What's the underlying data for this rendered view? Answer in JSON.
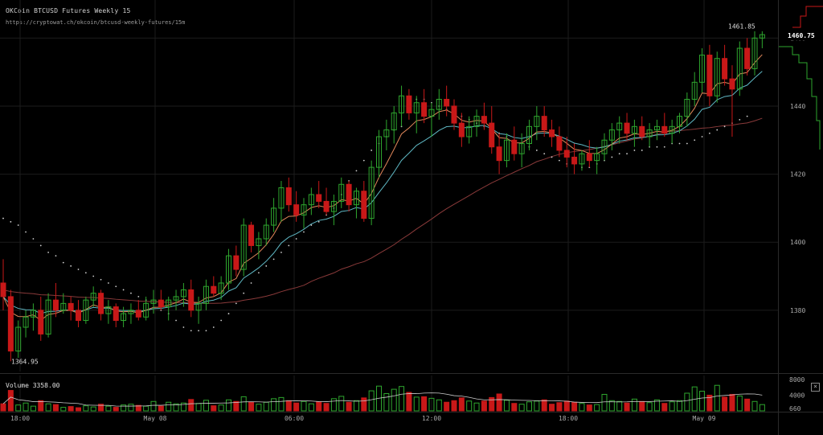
{
  "header": {
    "title": "OKCoin BTCUSD Futures Weekly 15",
    "url": "https://cryptowat.ch/okcoin/btcusd-weekly-futures/15m"
  },
  "colors": {
    "up": "#2ea62e",
    "down": "#c81818",
    "grid": "#1c1c1c",
    "ema_fast": "#e0875a",
    "ema_slow": "#5fb8c4",
    "sma_long": "#8a3a3a",
    "psar": "#cfcfcf",
    "volume_ma": "#cccccc"
  },
  "price_axis": {
    "ticks": [
      "1460",
      "1440",
      "1420",
      "1400",
      "1380"
    ],
    "current_price": "1460.75"
  },
  "annotations": {
    "high": "1461.85",
    "low": "1364.95"
  },
  "volume_panel": {
    "label": "Volume",
    "value": "3358.00",
    "ticks": [
      "8000",
      "4000",
      "660"
    ],
    "close_icon": "×"
  },
  "time_axis": {
    "labels": [
      "18:00",
      "May 08",
      "06:00",
      "12:00",
      "18:00",
      "May 09"
    ]
  },
  "chart_data": {
    "type": "candlestick",
    "title": "OKCoin BTCUSD Futures Weekly 15",
    "interval": "15m",
    "y_range": [
      1362,
      1470
    ],
    "volume_range": [
      0,
      9000
    ],
    "candles": [
      [
        1388,
        1395,
        1380,
        1384,
        1800
      ],
      [
        1384,
        1386,
        1365,
        1368,
        5200
      ],
      [
        1368,
        1377,
        1366,
        1375,
        1500
      ],
      [
        1375,
        1380,
        1372,
        1378,
        2000
      ],
      [
        1378,
        1382,
        1374,
        1380,
        1200
      ],
      [
        1380,
        1384,
        1371,
        1373,
        2600
      ],
      [
        1373,
        1385,
        1372,
        1383,
        1800
      ],
      [
        1383,
        1388,
        1378,
        1380,
        1600
      ],
      [
        1380,
        1385,
        1379,
        1382,
        900
      ],
      [
        1382,
        1384,
        1377,
        1380,
        1100
      ],
      [
        1380,
        1383,
        1375,
        1377,
        800
      ],
      [
        1377,
        1384,
        1376,
        1383,
        1300
      ],
      [
        1383,
        1387,
        1381,
        1385,
        1000
      ],
      [
        1385,
        1386,
        1377,
        1379,
        1700
      ],
      [
        1379,
        1383,
        1376,
        1381,
        1200
      ],
      [
        1381,
        1382,
        1375,
        1377,
        900
      ],
      [
        1377,
        1381,
        1375,
        1379,
        1500
      ],
      [
        1379,
        1382,
        1376,
        1380,
        1700
      ],
      [
        1380,
        1383,
        1377,
        1378,
        1400
      ],
      [
        1378,
        1384,
        1377,
        1382,
        1200
      ],
      [
        1382,
        1386,
        1379,
        1383,
        2400
      ],
      [
        1383,
        1386,
        1380,
        1381,
        1200
      ],
      [
        1381,
        1384,
        1377,
        1383,
        2200
      ],
      [
        1383,
        1386,
        1380,
        1384,
        1800
      ],
      [
        1384,
        1388,
        1381,
        1386,
        2000
      ],
      [
        1386,
        1389,
        1378,
        1380,
        2900
      ],
      [
        1380,
        1384,
        1376,
        1382,
        1900
      ],
      [
        1382,
        1389,
        1380,
        1387,
        2700
      ],
      [
        1387,
        1390,
        1384,
        1385,
        1300
      ],
      [
        1385,
        1390,
        1383,
        1388,
        1500
      ],
      [
        1388,
        1398,
        1386,
        1396,
        2800
      ],
      [
        1396,
        1399,
        1390,
        1392,
        2400
      ],
      [
        1392,
        1407,
        1390,
        1405,
        3600
      ],
      [
        1405,
        1406,
        1397,
        1399,
        2200
      ],
      [
        1399,
        1403,
        1395,
        1401,
        1700
      ],
      [
        1401,
        1407,
        1399,
        1405,
        2200
      ],
      [
        1405,
        1413,
        1403,
        1410,
        3100
      ],
      [
        1410,
        1418,
        1406,
        1416,
        3400
      ],
      [
        1416,
        1419,
        1409,
        1411,
        2600
      ],
      [
        1411,
        1415,
        1406,
        1408,
        2000
      ],
      [
        1408,
        1413,
        1404,
        1411,
        2400
      ],
      [
        1411,
        1416,
        1408,
        1414,
        1800
      ],
      [
        1414,
        1418,
        1410,
        1412,
        2300
      ],
      [
        1412,
        1416,
        1408,
        1409,
        1900
      ],
      [
        1409,
        1414,
        1405,
        1412,
        3100
      ],
      [
        1412,
        1419,
        1410,
        1417,
        3700
      ],
      [
        1417,
        1418,
        1409,
        1411,
        2200
      ],
      [
        1411,
        1416,
        1407,
        1415,
        2600
      ],
      [
        1415,
        1418,
        1406,
        1407,
        3300
      ],
      [
        1407,
        1424,
        1405,
        1422,
        5100
      ],
      [
        1422,
        1433,
        1419,
        1431,
        6300
      ],
      [
        1431,
        1436,
        1427,
        1433,
        4400
      ],
      [
        1433,
        1440,
        1429,
        1438,
        5500
      ],
      [
        1438,
        1446,
        1434,
        1443,
        6200
      ],
      [
        1443,
        1445,
        1436,
        1438,
        4700
      ],
      [
        1438,
        1443,
        1432,
        1441,
        3500
      ],
      [
        1441,
        1445,
        1435,
        1437,
        3600
      ],
      [
        1437,
        1441,
        1431,
        1439,
        3200
      ],
      [
        1439,
        1445,
        1436,
        1442,
        2800
      ],
      [
        1442,
        1446,
        1437,
        1440,
        2200
      ],
      [
        1440,
        1442,
        1433,
        1435,
        2600
      ],
      [
        1435,
        1438,
        1428,
        1431,
        3300
      ],
      [
        1431,
        1437,
        1429,
        1434,
        2500
      ],
      [
        1434,
        1439,
        1431,
        1437,
        2000
      ],
      [
        1437,
        1441,
        1433,
        1435,
        2500
      ],
      [
        1435,
        1440,
        1426,
        1428,
        3400
      ],
      [
        1428,
        1432,
        1420,
        1424,
        4300
      ],
      [
        1424,
        1432,
        1422,
        1430,
        2700
      ],
      [
        1430,
        1434,
        1424,
        1426,
        1900
      ],
      [
        1426,
        1432,
        1422,
        1429,
        1700
      ],
      [
        1429,
        1436,
        1427,
        1434,
        2300
      ],
      [
        1434,
        1440,
        1430,
        1437,
        2500
      ],
      [
        1437,
        1440,
        1431,
        1433,
        2800
      ],
      [
        1433,
        1436,
        1428,
        1431,
        1700
      ],
      [
        1431,
        1434,
        1425,
        1427,
        2100
      ],
      [
        1427,
        1431,
        1422,
        1425,
        2500
      ],
      [
        1425,
        1429,
        1420,
        1423,
        2200
      ],
      [
        1423,
        1427,
        1421,
        1426,
        1900
      ],
      [
        1426,
        1430,
        1422,
        1424,
        1500
      ],
      [
        1424,
        1428,
        1420,
        1426,
        1600
      ],
      [
        1426,
        1432,
        1424,
        1430,
        4200
      ],
      [
        1430,
        1435,
        1427,
        1433,
        2600
      ],
      [
        1433,
        1437,
        1429,
        1435,
        2400
      ],
      [
        1435,
        1438,
        1430,
        1432,
        2000
      ],
      [
        1432,
        1436,
        1428,
        1434,
        3000
      ],
      [
        1434,
        1437,
        1430,
        1431,
        2400
      ],
      [
        1431,
        1435,
        1428,
        1433,
        2100
      ],
      [
        1433,
        1436,
        1430,
        1434,
        2800
      ],
      [
        1434,
        1438,
        1431,
        1432,
        1900
      ],
      [
        1432,
        1436,
        1429,
        1434,
        2300
      ],
      [
        1434,
        1438,
        1432,
        1437,
        2600
      ],
      [
        1437,
        1444,
        1434,
        1442,
        4500
      ],
      [
        1442,
        1450,
        1440,
        1447,
        6100
      ],
      [
        1447,
        1457,
        1444,
        1455,
        5000
      ],
      [
        1455,
        1458,
        1440,
        1443,
        4000
      ],
      [
        1443,
        1456,
        1441,
        1454,
        6500
      ],
      [
        1454,
        1458,
        1446,
        1448,
        3500
      ],
      [
        1448,
        1452,
        1431,
        1445,
        4200
      ],
      [
        1445,
        1459,
        1443,
        1457,
        3800
      ],
      [
        1457,
        1460,
        1449,
        1451,
        3000
      ],
      [
        1451,
        1462,
        1449,
        1460,
        2400
      ],
      [
        1460,
        1462,
        1457,
        1461,
        1600
      ]
    ],
    "psar": [
      1407,
      1406,
      1405,
      1403,
      1401,
      1399,
      1397,
      1396,
      1394,
      1393,
      1392,
      1391,
      1390,
      1389,
      1388,
      1387,
      1386,
      1385,
      1384,
      1383,
      1382,
      1380,
      1379,
      1377,
      1375,
      1374,
      1374,
      1374,
      1375,
      1377,
      1379,
      1382,
      1385,
      1388,
      1391,
      1393,
      1395,
      1397,
      1399,
      1401,
      1403,
      1405,
      1406,
      1408,
      1410,
      1414,
      1418,
      1421,
      1424,
      1427,
      1429,
      1431,
      1433,
      1434,
      1441,
      1442,
      1442,
      1441,
      1440,
      1439,
      1438,
      1437,
      1436,
      1435,
      1434,
      1433,
      1432,
      1431,
      1430,
      1429,
      1428,
      1427,
      1426,
      1425,
      1424,
      1423,
      1423,
      1422,
      1422,
      1423,
      1424,
      1425,
      1426,
      1426,
      1427,
      1427,
      1428,
      1428,
      1428,
      1429,
      1429,
      1429,
      1430,
      1431,
      1432,
      1433,
      1434,
      1435,
      1436,
      1437
    ]
  }
}
